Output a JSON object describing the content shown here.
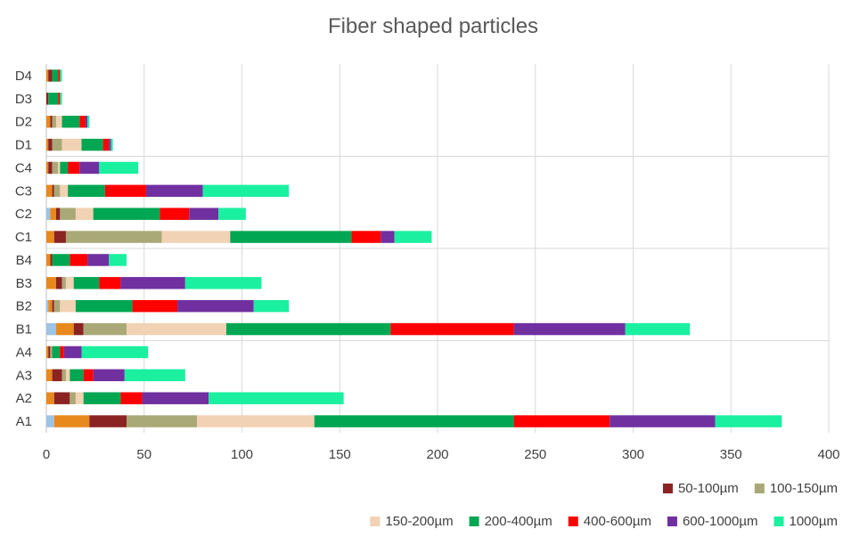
{
  "chart_data": {
    "type": "bar",
    "orientation": "horizontal",
    "stacked": true,
    "title": "Fiber shaped particles",
    "xlabel": "",
    "ylabel": "",
    "xlim": [
      0,
      400
    ],
    "x_ticks": [
      0,
      50,
      100,
      150,
      200,
      250,
      300,
      350,
      400
    ],
    "grid": true,
    "legend_position": "bottom",
    "categories": [
      "A1",
      "A2",
      "A3",
      "A4",
      "B1",
      "B2",
      "B3",
      "B4",
      "C1",
      "C2",
      "C3",
      "C4",
      "D1",
      "D2",
      "D3",
      "D4"
    ],
    "series": [
      {
        "name": "",
        "color": "#9DC3E6",
        "values": [
          4,
          0,
          0,
          0,
          5,
          1,
          0,
          0,
          0,
          2,
          0,
          0,
          0,
          0,
          0,
          0
        ]
      },
      {
        "name": "",
        "color": "#E8891E",
        "values": [
          18,
          4,
          3,
          1,
          9,
          2,
          5,
          2,
          4,
          3,
          3,
          1,
          1,
          2,
          0,
          1
        ]
      },
      {
        "name": "50-100µm",
        "color": "#8B2323",
        "values": [
          19,
          8,
          5,
          1,
          5,
          1,
          3,
          1,
          6,
          2,
          1,
          2,
          2,
          1,
          1,
          2
        ]
      },
      {
        "name": "100-150µm",
        "color": "#A9A977",
        "values": [
          36,
          3,
          2,
          1,
          22,
          3,
          2,
          0,
          49,
          8,
          3,
          3,
          5,
          2,
          0,
          0
        ]
      },
      {
        "name": "150-200µm",
        "color": "#F2D2B4",
        "values": [
          60,
          4,
          2,
          0,
          51,
          8,
          4,
          0,
          35,
          9,
          4,
          1,
          10,
          3,
          0,
          0
        ]
      },
      {
        "name": "200-400µm",
        "color": "#00A651",
        "values": [
          102,
          19,
          7,
          4,
          84,
          29,
          13,
          9,
          62,
          34,
          19,
          4,
          11,
          9,
          5,
          3
        ]
      },
      {
        "name": "400-600µm",
        "color": "#FF0000",
        "values": [
          49,
          11,
          5,
          2,
          63,
          23,
          11,
          9,
          15,
          15,
          21,
          6,
          3,
          3,
          1,
          1
        ]
      },
      {
        "name": "600-1000µm",
        "color": "#7030A0",
        "values": [
          54,
          34,
          16,
          9,
          57,
          39,
          33,
          11,
          7,
          15,
          29,
          10,
          1,
          1,
          0,
          0
        ]
      },
      {
        "name": "1000µm",
        "color": "#1AF0A0",
        "values": [
          34,
          69,
          31,
          34,
          33,
          18,
          39,
          9,
          19,
          14,
          44,
          20,
          1,
          1,
          1,
          1
        ]
      }
    ]
  }
}
